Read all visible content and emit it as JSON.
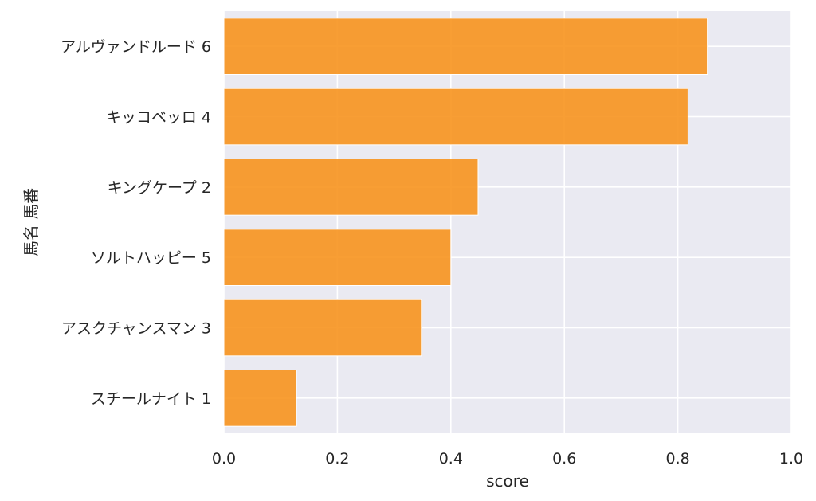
{
  "chart_data": {
    "type": "bar",
    "orientation": "horizontal",
    "categories": [
      "アルヴァンドルード 6",
      "キッコベッロ 4",
      "キングケープ 2",
      "ソルトハッピー 5",
      "アスクチャンスマン 3",
      "スチールナイト 1"
    ],
    "values": [
      0.852,
      0.818,
      0.448,
      0.4,
      0.348,
      0.128
    ],
    "xlabel": "score",
    "ylabel": "馬名 馬番",
    "xlim": [
      0.0,
      1.0
    ],
    "xticks": [
      "0.0",
      "0.2",
      "0.4",
      "0.6",
      "0.8",
      "1.0"
    ],
    "grid": true,
    "colors": {
      "bar": "#f7931e",
      "plot_bg": "#eaeaf2",
      "grid": "#ffffff"
    }
  }
}
